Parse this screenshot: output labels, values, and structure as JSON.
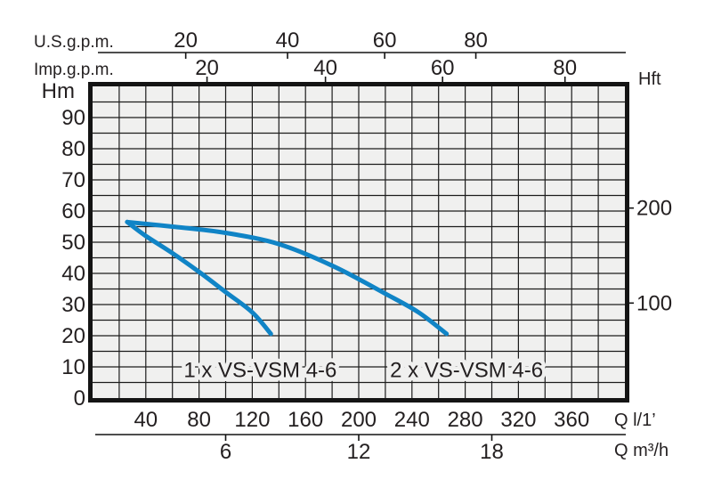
{
  "chart_data": {
    "type": "line",
    "description": "Pump performance curves: head (Hm / Hft) versus flow (Q l/1', Q m3/h, U.S.g.p.m., Imp.g.p.m.)",
    "plot": {
      "bg_color": "#f0f0ef",
      "grid_color": "#1c1c1c",
      "border_color": "#141414",
      "text_color": "#231f20",
      "x_range_l1": [
        0,
        400
      ],
      "x_grid_step": 20,
      "y_range_hm": [
        0,
        100
      ],
      "y_grid_step": 5,
      "grid": "on",
      "legend": "inline-labels"
    },
    "axes": {
      "us_gpm": {
        "label": "U.S.g.p.m.",
        "ticks": [
          {
            "v": "20",
            "q": 70
          },
          {
            "v": "40",
            "q": 146.5
          },
          {
            "v": "60",
            "q": 219.5
          },
          {
            "v": "80",
            "q": 288
          }
        ]
      },
      "imp_gpm": {
        "label": "Imp.g.p.m.",
        "ticks": [
          {
            "v": "20",
            "q": 86
          },
          {
            "v": "40",
            "q": 175
          },
          {
            "v": "60",
            "q": 263
          },
          {
            "v": "80",
            "q": 355
          }
        ]
      },
      "hm": {
        "label": "Hm",
        "ticks": [
          "0",
          "10",
          "20",
          "30",
          "40",
          "50",
          "60",
          "70",
          "80",
          "90"
        ]
      },
      "hft": {
        "label": "Hft",
        "ticks": [
          {
            "v": "100",
            "hm": 30.48
          },
          {
            "v": "200",
            "hm": 60.96
          }
        ]
      },
      "l1": {
        "label": "Q l/1’",
        "ticks": [
          "40",
          "80",
          "120",
          "160",
          "200",
          "240",
          "280",
          "320",
          "360"
        ]
      },
      "m3h": {
        "label": "Q m³/h",
        "ticks": [
          {
            "v": "6",
            "q": 100
          },
          {
            "v": "12",
            "q": 200
          },
          {
            "v": "18",
            "q": 300
          }
        ]
      }
    },
    "series": [
      {
        "name": "1 x VS-VSM 4-6",
        "color": "#1084c6",
        "points": [
          [
            26,
            56.5
          ],
          [
            40,
            52
          ],
          [
            60,
            46.5
          ],
          [
            80,
            40.5
          ],
          [
            100,
            34
          ],
          [
            120,
            27.5
          ],
          [
            134,
            20.6
          ]
        ],
        "label_pos": [
          126,
          9
        ]
      },
      {
        "name": "2 x VS-VSM 4-6",
        "color": "#1084c6",
        "points": [
          [
            26,
            56.5
          ],
          [
            60,
            55
          ],
          [
            100,
            53
          ],
          [
            140,
            49.4
          ],
          [
            180,
            42.5
          ],
          [
            220,
            33.5
          ],
          [
            245,
            27.5
          ],
          [
            266,
            20.6
          ]
        ],
        "label_pos": [
          281,
          9
        ]
      }
    ]
  }
}
